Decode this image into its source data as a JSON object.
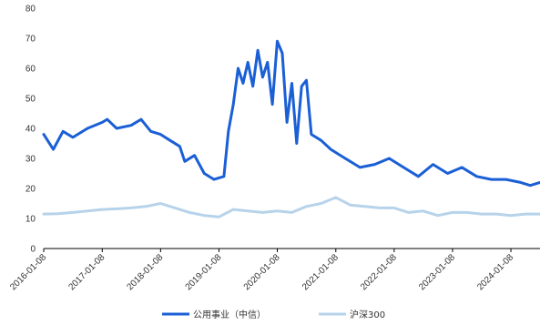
{
  "chart_data": {
    "type": "line",
    "title": "",
    "xlabel": "",
    "ylabel": "",
    "ylim": [
      0,
      80
    ],
    "yticks": [
      0,
      10,
      20,
      30,
      40,
      50,
      60,
      70,
      80
    ],
    "xlim": [
      "2016-01-08",
      "2024-07-08"
    ],
    "xticks": [
      "2016-01-08",
      "2017-01-08",
      "2018-01-08",
      "2019-01-08",
      "2020-01-08",
      "2021-01-08",
      "2022-01-08",
      "2023-01-08",
      "2024-01-08"
    ],
    "grid": false,
    "legend": "bottom-center",
    "series": [
      {
        "name": "公用事业（中信）",
        "color": "#1a5fd6",
        "points": [
          [
            "2016-01-08",
            38
          ],
          [
            "2016-03-08",
            33
          ],
          [
            "2016-05-08",
            39
          ],
          [
            "2016-07-08",
            37
          ],
          [
            "2016-10-08",
            40
          ],
          [
            "2017-01-08",
            42
          ],
          [
            "2017-02-08",
            43
          ],
          [
            "2017-04-08",
            40
          ],
          [
            "2017-07-08",
            41
          ],
          [
            "2017-09-08",
            43
          ],
          [
            "2017-11-08",
            39
          ],
          [
            "2018-01-08",
            38
          ],
          [
            "2018-03-08",
            36
          ],
          [
            "2018-05-08",
            34
          ],
          [
            "2018-06-08",
            29
          ],
          [
            "2018-08-08",
            31
          ],
          [
            "2018-10-08",
            25
          ],
          [
            "2018-12-08",
            23
          ],
          [
            "2019-02-08",
            24
          ],
          [
            "2019-03-08",
            39
          ],
          [
            "2019-04-08",
            48
          ],
          [
            "2019-05-08",
            60
          ],
          [
            "2019-06-08",
            55
          ],
          [
            "2019-07-08",
            62
          ],
          [
            "2019-08-08",
            54
          ],
          [
            "2019-09-08",
            66
          ],
          [
            "2019-10-08",
            57
          ],
          [
            "2019-11-08",
            62
          ],
          [
            "2019-12-08",
            48
          ],
          [
            "2020-01-08",
            69
          ],
          [
            "2020-02-08",
            65
          ],
          [
            "2020-03-08",
            42
          ],
          [
            "2020-04-08",
            55
          ],
          [
            "2020-05-08",
            35
          ],
          [
            "2020-06-08",
            54
          ],
          [
            "2020-07-08",
            56
          ],
          [
            "2020-08-08",
            38
          ],
          [
            "2020-10-08",
            36
          ],
          [
            "2020-12-08",
            33
          ],
          [
            "2021-03-08",
            30
          ],
          [
            "2021-06-08",
            27
          ],
          [
            "2021-09-08",
            28
          ],
          [
            "2021-12-08",
            30
          ],
          [
            "2022-03-08",
            27
          ],
          [
            "2022-06-08",
            24
          ],
          [
            "2022-09-08",
            28
          ],
          [
            "2022-12-08",
            25
          ],
          [
            "2023-03-08",
            27
          ],
          [
            "2023-06-08",
            24
          ],
          [
            "2023-09-08",
            23
          ],
          [
            "2023-12-08",
            23
          ],
          [
            "2024-03-08",
            22
          ],
          [
            "2024-05-08",
            21
          ],
          [
            "2024-07-08",
            22
          ]
        ]
      },
      {
        "name": "沪深300",
        "color": "#b7d3ea",
        "points": [
          [
            "2016-01-08",
            11.5
          ],
          [
            "2016-04-08",
            11.6
          ],
          [
            "2016-07-08",
            12.0
          ],
          [
            "2016-10-08",
            12.5
          ],
          [
            "2017-01-08",
            13.0
          ],
          [
            "2017-04-08",
            13.2
          ],
          [
            "2017-07-08",
            13.5
          ],
          [
            "2017-10-08",
            14.0
          ],
          [
            "2018-01-08",
            15.0
          ],
          [
            "2018-04-08",
            13.5
          ],
          [
            "2018-07-08",
            12.0
          ],
          [
            "2018-10-08",
            11.0
          ],
          [
            "2019-01-08",
            10.5
          ],
          [
            "2019-04-08",
            13.0
          ],
          [
            "2019-07-08",
            12.5
          ],
          [
            "2019-10-08",
            12.0
          ],
          [
            "2020-01-08",
            12.5
          ],
          [
            "2020-04-08",
            12.0
          ],
          [
            "2020-07-08",
            14.0
          ],
          [
            "2020-10-08",
            15.0
          ],
          [
            "2021-01-08",
            17.0
          ],
          [
            "2021-04-08",
            14.5
          ],
          [
            "2021-07-08",
            14.0
          ],
          [
            "2021-10-08",
            13.5
          ],
          [
            "2022-01-08",
            13.5
          ],
          [
            "2022-04-08",
            12.0
          ],
          [
            "2022-07-08",
            12.5
          ],
          [
            "2022-10-08",
            11.0
          ],
          [
            "2023-01-08",
            12.0
          ],
          [
            "2023-04-08",
            12.0
          ],
          [
            "2023-07-08",
            11.5
          ],
          [
            "2023-10-08",
            11.5
          ],
          [
            "2024-01-08",
            11.0
          ],
          [
            "2024-04-08",
            11.5
          ],
          [
            "2024-07-08",
            11.5
          ]
        ]
      }
    ]
  }
}
